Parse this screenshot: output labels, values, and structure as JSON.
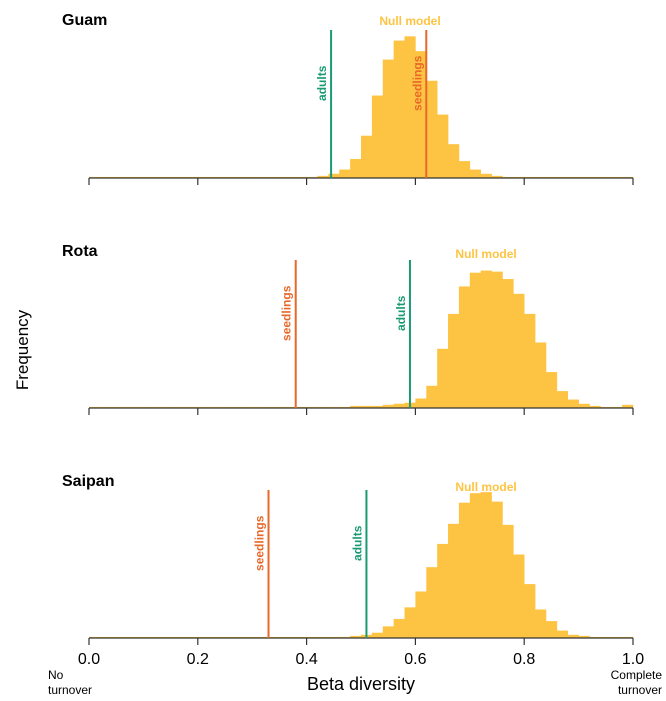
{
  "ylabel": "Frequency",
  "xlabel": "Beta diversity",
  "x_ticks": [
    "0.0",
    "0.2",
    "0.4",
    "0.6",
    "0.8",
    "1.0"
  ],
  "x_end_labels": {
    "left_1": "No",
    "left_2": "turnover",
    "right_1": "Complete",
    "right_2": "turnover"
  },
  "colors": {
    "null": "#FDC443",
    "adults": "#1A9A73",
    "seedlings": "#E8682A",
    "axis": "#333333"
  },
  "chart_data": [
    {
      "type": "bar",
      "title": "Guam",
      "null_label": "Null model",
      "xlim": [
        0,
        1
      ],
      "bin_width": 0.02,
      "bin_starts": [
        0.0,
        0.02,
        0.04,
        0.06,
        0.08,
        0.1,
        0.12,
        0.14,
        0.16,
        0.18,
        0.2,
        0.22,
        0.24,
        0.26,
        0.28,
        0.3,
        0.32,
        0.34,
        0.36,
        0.38,
        0.4,
        0.42,
        0.44,
        0.46,
        0.48,
        0.5,
        0.52,
        0.54,
        0.56,
        0.58,
        0.6,
        0.62,
        0.64,
        0.66,
        0.68,
        0.7,
        0.72,
        0.74,
        0.76,
        0.78,
        0.8,
        0.82,
        0.84,
        0.86,
        0.88,
        0.9,
        0.92,
        0.94,
        0.96,
        0.98
      ],
      "frequency": [
        1,
        1,
        1,
        1,
        1,
        1,
        1,
        1,
        1,
        1,
        1,
        1,
        1,
        1,
        1,
        1,
        1,
        1,
        1,
        1,
        1,
        2,
        4,
        8,
        18,
        40,
        78,
        112,
        130,
        134,
        120,
        92,
        60,
        32,
        16,
        8,
        4,
        2,
        1,
        1,
        1,
        1,
        1,
        1,
        1,
        1,
        1,
        1,
        1,
        1
      ],
      "ylim": [
        0,
        140
      ],
      "lines": [
        {
          "name": "adults",
          "x": 0.445
        },
        {
          "name": "seedlings",
          "x": 0.62
        }
      ]
    },
    {
      "type": "bar",
      "title": "Rota",
      "null_label": "Null model",
      "xlim": [
        0,
        1
      ],
      "bin_width": 0.02,
      "bin_starts": [
        0.0,
        0.02,
        0.04,
        0.06,
        0.08,
        0.1,
        0.12,
        0.14,
        0.16,
        0.18,
        0.2,
        0.22,
        0.24,
        0.26,
        0.28,
        0.3,
        0.32,
        0.34,
        0.36,
        0.38,
        0.4,
        0.42,
        0.44,
        0.46,
        0.48,
        0.5,
        0.52,
        0.54,
        0.56,
        0.58,
        0.6,
        0.62,
        0.64,
        0.66,
        0.68,
        0.7,
        0.72,
        0.74,
        0.76,
        0.78,
        0.8,
        0.82,
        0.84,
        0.86,
        0.88,
        0.9,
        0.92,
        0.94,
        0.96,
        0.98
      ],
      "frequency": [
        1,
        1,
        1,
        1,
        1,
        1,
        1,
        1,
        1,
        1,
        1,
        1,
        1,
        1,
        1,
        1,
        1,
        1,
        1,
        1,
        1,
        1,
        1,
        1,
        2,
        2,
        2,
        3,
        4,
        5,
        9,
        21,
        56,
        89,
        115,
        128,
        130,
        129,
        122,
        108,
        89,
        62,
        34,
        16,
        8,
        4,
        2,
        1,
        1,
        3
      ],
      "ylim": [
        0,
        140
      ],
      "lines": [
        {
          "name": "seedlings",
          "x": 0.38
        },
        {
          "name": "adults",
          "x": 0.59
        }
      ]
    },
    {
      "type": "bar",
      "title": "Saipan",
      "null_label": "Null model",
      "xlim": [
        0,
        1
      ],
      "bin_width": 0.02,
      "bin_starts": [
        0.0,
        0.02,
        0.04,
        0.06,
        0.08,
        0.1,
        0.12,
        0.14,
        0.16,
        0.18,
        0.2,
        0.22,
        0.24,
        0.26,
        0.28,
        0.3,
        0.32,
        0.34,
        0.36,
        0.38,
        0.4,
        0.42,
        0.44,
        0.46,
        0.48,
        0.5,
        0.52,
        0.54,
        0.56,
        0.58,
        0.6,
        0.62,
        0.64,
        0.66,
        0.68,
        0.7,
        0.72,
        0.74,
        0.76,
        0.78,
        0.8,
        0.82,
        0.84,
        0.86,
        0.88,
        0.9,
        0.92,
        0.94,
        0.96,
        0.98
      ],
      "frequency": [
        1,
        1,
        1,
        1,
        1,
        1,
        1,
        1,
        1,
        1,
        1,
        1,
        1,
        1,
        1,
        1,
        1,
        1,
        1,
        1,
        1,
        1,
        1,
        1,
        2,
        3,
        5,
        11,
        18,
        29,
        44,
        67,
        89,
        108,
        128,
        137,
        138,
        129,
        107,
        79,
        51,
        27,
        16,
        7,
        3,
        2,
        1,
        1,
        1,
        1
      ],
      "ylim": [
        0,
        140
      ],
      "lines": [
        {
          "name": "seedlings",
          "x": 0.33
        },
        {
          "name": "adults",
          "x": 0.51
        }
      ]
    }
  ]
}
